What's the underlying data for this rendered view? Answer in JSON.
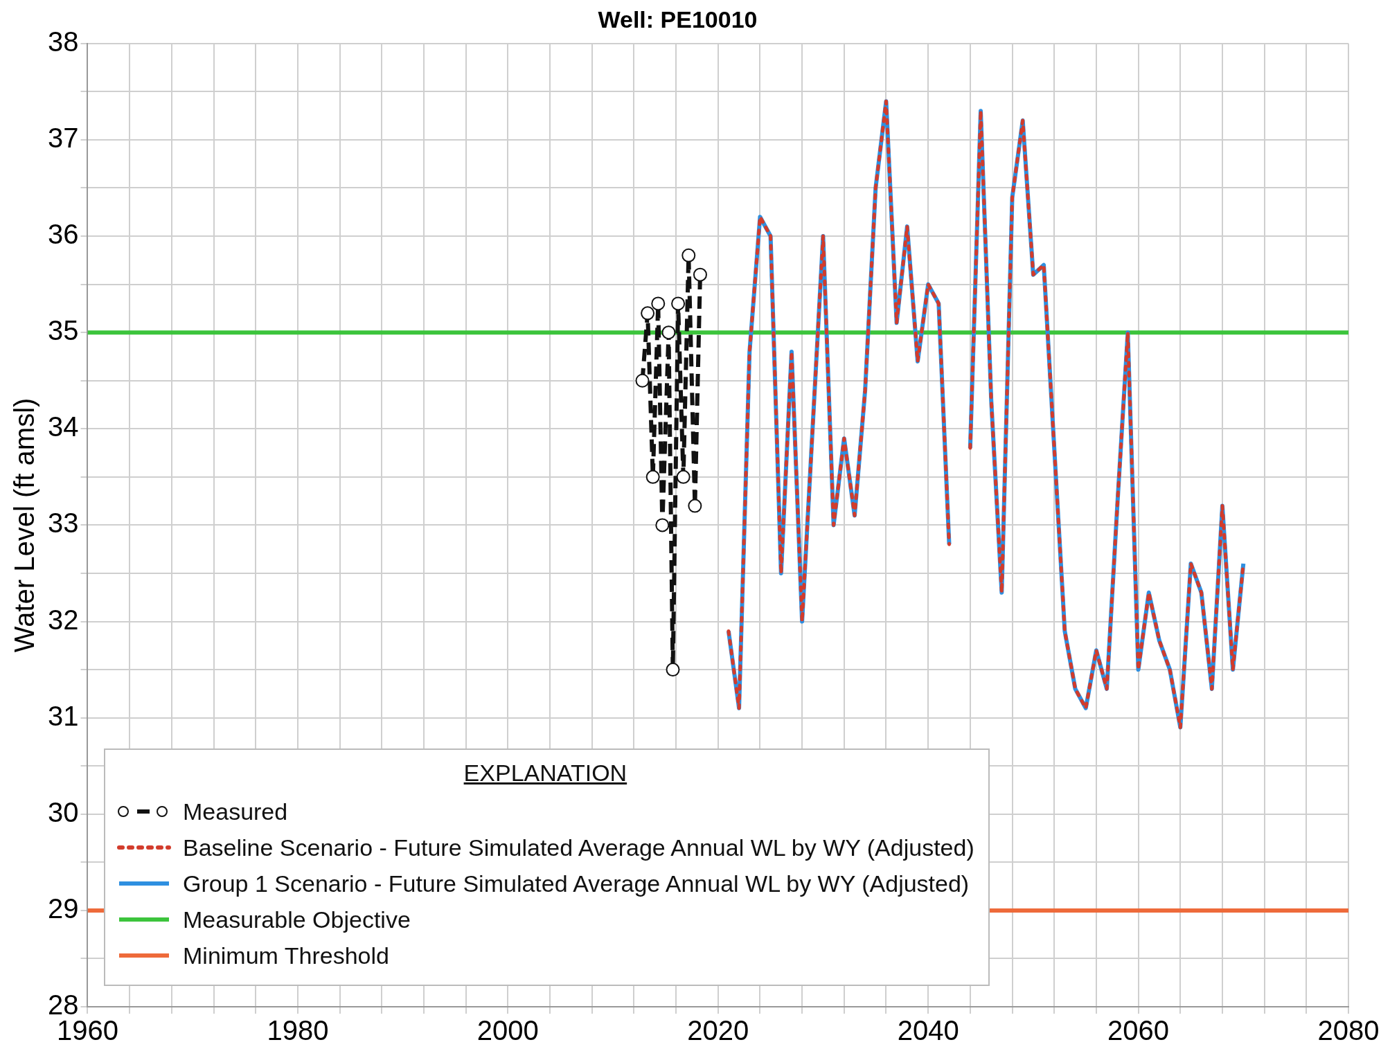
{
  "chart_data": {
    "type": "line",
    "title": "Well: PE10010",
    "ylabel": "Water Level (ft amsl)",
    "legend_title": "EXPLANATION",
    "legend": "bottom left",
    "grid": true,
    "x": [
      2021,
      2022,
      2023,
      2024,
      2025,
      2026,
      2027,
      2028,
      2029,
      2030,
      2031,
      2032,
      2033,
      2034,
      2035,
      2036,
      2037,
      2038,
      2039,
      2040,
      2041,
      2042,
      2043,
      2044,
      2045,
      2046,
      2047,
      2048,
      2049,
      2050,
      2051,
      2052,
      2053,
      2054,
      2055,
      2056,
      2057,
      2058,
      2059,
      2060,
      2061,
      2062,
      2063,
      2064,
      2065,
      2066,
      2067,
      2068,
      2069,
      2070
    ],
    "xlim": [
      1960,
      2080
    ],
    "xticks": [
      1960,
      {
        "value": 1964,
        "label": null
      },
      {
        "value": 1968,
        "label": null
      },
      {
        "value": 1972,
        "label": null
      },
      {
        "value": 1976,
        "label": null
      },
      1980,
      {
        "value": 1984,
        "label": null
      },
      {
        "value": 1988,
        "label": null
      },
      {
        "value": 1992,
        "label": null
      },
      {
        "value": 1996,
        "label": null
      },
      2000,
      {
        "value": 2004,
        "label": null
      },
      {
        "value": 2008,
        "label": null
      },
      {
        "value": 2012,
        "label": null
      },
      {
        "value": 2016,
        "label": null
      },
      2020,
      {
        "value": 2024,
        "label": null
      },
      {
        "value": 2028,
        "label": null
      },
      {
        "value": 2032,
        "label": null
      },
      {
        "value": 2036,
        "label": null
      },
      2040,
      {
        "value": 2044,
        "label": null
      },
      {
        "value": 2048,
        "label": null
      },
      {
        "value": 2052,
        "label": null
      },
      {
        "value": 2056,
        "label": null
      },
      2060,
      {
        "value": 2064,
        "label": null
      },
      {
        "value": 2068,
        "label": null
      },
      {
        "value": 2072,
        "label": null
      },
      {
        "value": 2076,
        "label": null
      },
      2080
    ],
    "ylim": [
      28,
      38
    ],
    "yticks": [
      28,
      {
        "value": 28.5,
        "label": null
      },
      29,
      {
        "value": 29.5,
        "label": null
      },
      30,
      {
        "value": 30.5,
        "label": null
      },
      31,
      {
        "value": 31.5,
        "label": null
      },
      32,
      {
        "value": 32.5,
        "label": null
      },
      33,
      {
        "value": 33.5,
        "label": null
      },
      34,
      {
        "value": 34.5,
        "label": null
      },
      35,
      {
        "value": 35.5,
        "label": null
      },
      36,
      {
        "value": 36.5,
        "label": null
      },
      37,
      {
        "value": 37.5,
        "label": null
      },
      38
    ],
    "series": [
      {
        "name": "Measured",
        "color": "#111111",
        "marker": "circle",
        "line_style": "dashed",
        "x": [
          2012.8,
          2013.3,
          2013.8,
          2014.3,
          2014.7,
          2015.3,
          2015.7,
          2016.2,
          2016.7,
          2017.2,
          2017.8,
          2018.3
        ],
        "values": [
          34.5,
          35.2,
          33.5,
          35.3,
          33.0,
          35.0,
          31.5,
          35.3,
          33.5,
          35.8,
          33.2,
          35.6
        ]
      },
      {
        "name": "Group 1 Scenario - Future Simulated Average Annual WL by WY (Adjusted)",
        "color": "#2e8fe0",
        "marker": "none",
        "line_style": "solid",
        "values": [
          31.9,
          31.1,
          34.8,
          36.2,
          36.0,
          32.5,
          34.8,
          32.0,
          34.0,
          36.0,
          33.0,
          33.9,
          33.1,
          34.4,
          36.5,
          37.4,
          35.1,
          36.1,
          34.7,
          35.5,
          35.3,
          32.8,
          null,
          33.8,
          37.3,
          34.3,
          32.3,
          36.4,
          37.2,
          35.6,
          35.7,
          33.8,
          31.9,
          31.3,
          31.1,
          31.7,
          31.3,
          33.2,
          35.0,
          31.5,
          32.3,
          31.8,
          31.5,
          30.9,
          32.6,
          32.3,
          31.3,
          33.2,
          31.5,
          32.6
        ]
      },
      {
        "name": "Baseline Scenario - Future Simulated Average Annual WL by WY (Adjusted)",
        "color": "#d23c2c",
        "marker": "none",
        "line_style": "dotted",
        "values": [
          31.9,
          31.1,
          34.8,
          36.2,
          36.0,
          32.5,
          34.8,
          32.0,
          34.0,
          36.0,
          33.0,
          33.9,
          33.1,
          34.4,
          36.5,
          37.4,
          35.1,
          36.1,
          34.7,
          35.5,
          35.3,
          32.8,
          null,
          33.8,
          37.3,
          34.3,
          32.3,
          36.4,
          37.2,
          35.6,
          35.7,
          33.8,
          31.9,
          31.3,
          31.1,
          31.7,
          31.3,
          33.2,
          35.0,
          31.5,
          32.3,
          31.8,
          31.5,
          30.9,
          32.6,
          32.3,
          31.3,
          33.2,
          31.5,
          32.6
        ]
      }
    ],
    "ref_lines": [
      {
        "axis": "y",
        "value": 35,
        "label": "Measurable Objective",
        "color": "#3cc43c",
        "line_style": "solid"
      },
      {
        "axis": "y",
        "value": 29,
        "label": "Minimum Threshold",
        "color": "#ee6a3a",
        "line_style": "solid"
      }
    ]
  }
}
